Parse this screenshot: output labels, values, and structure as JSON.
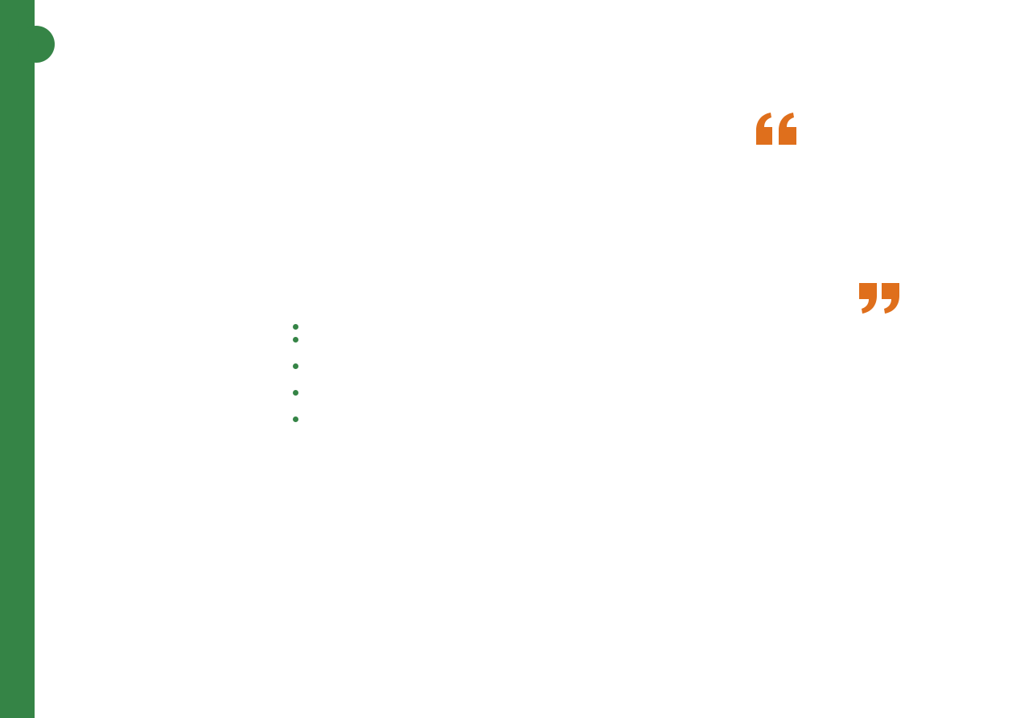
{
  "colors": {
    "accent_green": "#358446",
    "quote_orange": "#df6f1c",
    "background": "#ffffff"
  },
  "sidebar": {
    "icon": "tab-circle-icon"
  },
  "quote": {
    "open_icon": "open-quote-icon",
    "close_icon": "close-quote-icon"
  },
  "bullets": {
    "count": 5,
    "icon": "bullet-dot-icon"
  }
}
